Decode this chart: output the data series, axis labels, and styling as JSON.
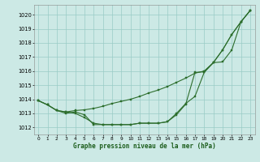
{
  "xlabel": "Graphe pression niveau de la mer (hPa)",
  "xlim": [
    -0.5,
    23.5
  ],
  "ylim": [
    1011.5,
    1020.7
  ],
  "yticks": [
    1012,
    1013,
    1014,
    1015,
    1016,
    1017,
    1018,
    1019,
    1020
  ],
  "xticks": [
    0,
    1,
    2,
    3,
    4,
    5,
    6,
    7,
    8,
    9,
    10,
    11,
    12,
    13,
    14,
    15,
    16,
    17,
    18,
    19,
    20,
    21,
    22,
    23
  ],
  "bg_color": "#cce9e5",
  "grid_color": "#99ccc6",
  "line_color": "#2d6e2d",
  "line1_x": [
    0,
    1,
    2,
    3,
    4,
    5,
    6,
    7,
    8,
    9,
    10,
    11,
    12,
    13,
    14,
    15,
    16,
    17,
    18,
    19,
    20,
    21,
    22,
    23
  ],
  "line1_y": [
    1013.9,
    1013.6,
    1013.2,
    1013.1,
    1013.0,
    1012.7,
    1012.3,
    1012.2,
    1012.2,
    1012.2,
    1012.2,
    1012.3,
    1012.3,
    1012.3,
    1012.4,
    1013.0,
    1013.7,
    1014.2,
    1015.9,
    1016.6,
    1017.5,
    1018.6,
    1019.5,
    1020.3
  ],
  "line2_x": [
    0,
    1,
    2,
    3,
    4,
    5,
    6,
    7,
    8,
    9,
    10,
    11,
    12,
    13,
    14,
    15,
    16,
    17,
    18,
    19,
    20,
    21,
    22,
    23
  ],
  "line2_y": [
    1013.9,
    1013.6,
    1013.2,
    1013.1,
    1013.2,
    1013.25,
    1013.35,
    1013.5,
    1013.7,
    1013.85,
    1014.0,
    1014.2,
    1014.45,
    1014.65,
    1014.9,
    1015.2,
    1015.5,
    1015.85,
    1016.0,
    1016.6,
    1017.5,
    1018.6,
    1019.5,
    1020.3
  ],
  "line3_x": [
    0,
    1,
    2,
    3,
    4,
    5,
    6,
    7,
    8,
    9,
    10,
    11,
    12,
    13,
    14,
    15,
    16,
    17,
    18,
    19,
    20,
    21,
    22,
    23
  ],
  "line3_y": [
    1013.9,
    1013.6,
    1013.2,
    1013.0,
    1013.1,
    1012.9,
    1012.2,
    1012.2,
    1012.2,
    1012.2,
    1012.2,
    1012.3,
    1012.3,
    1012.3,
    1012.4,
    1012.9,
    1013.65,
    1015.9,
    1015.95,
    1016.6,
    1016.65,
    1017.5,
    1019.5,
    1020.3
  ]
}
